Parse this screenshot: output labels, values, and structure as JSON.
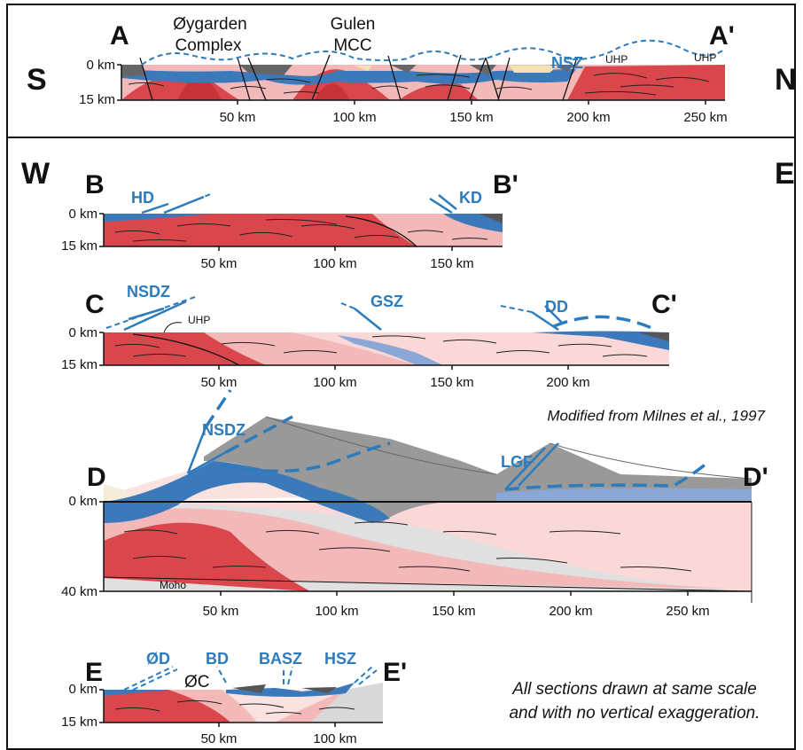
{
  "compass": {
    "south": "S",
    "north": "N",
    "west": "W",
    "east": "E"
  },
  "section_a": {
    "start": "A",
    "end": "A'",
    "annotations": [
      "Øygarden",
      "Complex",
      "Gulen",
      "MCC",
      "NSZ",
      "UHP",
      "UHP"
    ],
    "depth": [
      "0 km",
      "15 km"
    ],
    "distance": [
      "50 km",
      "100 km",
      "150 km",
      "200 km",
      "250 km"
    ]
  },
  "section_b": {
    "start": "B",
    "end": "B'",
    "annotations": [
      "HD",
      "KD"
    ],
    "depth": [
      "0 km",
      "15 km"
    ],
    "distance": [
      "50 km",
      "100 km",
      "150 km"
    ]
  },
  "section_c": {
    "start": "C",
    "end": "C'",
    "annotations": [
      "NSDZ",
      "UHP",
      "GSZ",
      "DD"
    ],
    "depth": [
      "0 km",
      "15 km"
    ],
    "distance": [
      "50 km",
      "100 km",
      "150 km",
      "200 km"
    ]
  },
  "section_d": {
    "start": "D",
    "end": "D'",
    "annotations": [
      "NSDZ",
      "LGF",
      "Moho"
    ],
    "credit": "Modified from Milnes et al., 1997",
    "depth": [
      "0 km",
      "40 km"
    ],
    "distance": [
      "50 km",
      "100 km",
      "150 km",
      "200 km",
      "250 km"
    ]
  },
  "section_e": {
    "start": "E",
    "end": "E'",
    "annotations": [
      "ØD",
      "ØC",
      "BD",
      "BASZ",
      "HSZ"
    ],
    "depth": [
      "0 km",
      "15 km"
    ],
    "distance": [
      "50 km",
      "100 km"
    ]
  },
  "note": [
    "All sections drawn at same scale",
    "and with no vertical exaggeration."
  ]
}
